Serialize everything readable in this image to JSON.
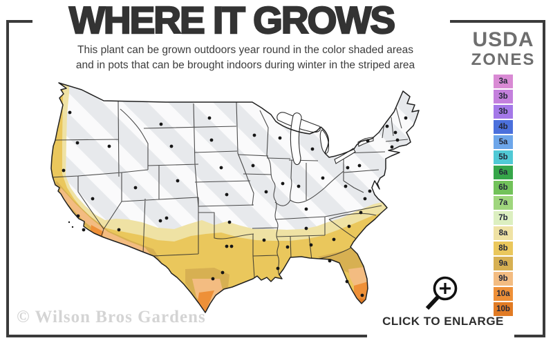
{
  "header": {
    "title": "WHERE IT GROWS",
    "subtitle_line1": "This plant can be grown outdoors year round in the color shaded areas",
    "subtitle_line2": "and in pots that can be brought indoors during winter in the striped area"
  },
  "legend": {
    "title_line1": "USDA",
    "title_line2": "ZONES",
    "zones": [
      {
        "label": "3a",
        "color": "#d98ad4"
      },
      {
        "label": "3b",
        "color": "#c480dd"
      },
      {
        "label": "3b",
        "color": "#a478e8"
      },
      {
        "label": "4b",
        "color": "#4b70dc"
      },
      {
        "label": "5a",
        "color": "#6da6ea"
      },
      {
        "label": "5b",
        "color": "#50c9d5"
      },
      {
        "label": "6a",
        "color": "#36a64a"
      },
      {
        "label": "6b",
        "color": "#72c25a"
      },
      {
        "label": "7a",
        "color": "#9fd67d"
      },
      {
        "label": "7b",
        "color": "#dcefc0"
      },
      {
        "label": "8a",
        "color": "#efe2a4"
      },
      {
        "label": "8b",
        "color": "#eac75c"
      },
      {
        "label": "9a",
        "color": "#d7b052"
      },
      {
        "label": "9b",
        "color": "#f3bc81"
      },
      {
        "label": "10a",
        "color": "#ee9038"
      },
      {
        "label": "10b",
        "color": "#e17b24"
      }
    ]
  },
  "map": {
    "description": "Contiguous United States hardiness-zone map; striped gray northern area, color shaded southern and coastal areas, black dot on each state",
    "base_color": "#e7e9ec",
    "stripe_color": "#ffffff",
    "border_color": "#2b2b2b"
  },
  "footer": {
    "watermark": "© Wilson Bros Gardens",
    "enlarge_label": "CLICK TO ENLARGE"
  }
}
